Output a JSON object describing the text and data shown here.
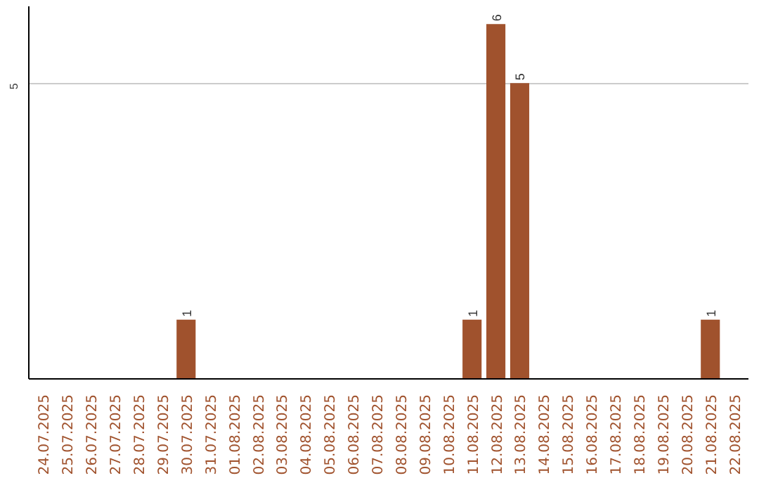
{
  "chart_data": {
    "type": "bar",
    "categories": [
      "24.07.2025",
      "25.07.2025",
      "26.07.2025",
      "27.07.2025",
      "28.07.2025",
      "29.07.2025",
      "30.07.2025",
      "31.07.2025",
      "01.08.2025",
      "02.08.2025",
      "03.08.2025",
      "04.08.2025",
      "05.08.2025",
      "06.08.2025",
      "07.08.2025",
      "08.08.2025",
      "09.08.2025",
      "10.08.2025",
      "11.08.2025",
      "12.08.2025",
      "13.08.2025",
      "14.08.2025",
      "15.08.2025",
      "16.08.2025",
      "17.08.2025",
      "18.08.2025",
      "19.08.2025",
      "20.08.2025",
      "21.08.2025",
      "22.08.2025"
    ],
    "values": [
      0,
      0,
      0,
      0,
      0,
      0,
      1,
      0,
      0,
      0,
      0,
      0,
      0,
      0,
      0,
      0,
      0,
      0,
      1,
      6,
      5,
      0,
      0,
      0,
      0,
      0,
      0,
      0,
      1,
      0
    ],
    "value_labels": [
      null,
      null,
      null,
      null,
      null,
      null,
      "1",
      null,
      null,
      null,
      null,
      null,
      null,
      null,
      null,
      null,
      null,
      null,
      "1",
      "6",
      "5",
      null,
      null,
      null,
      null,
      null,
      null,
      null,
      "1",
      null
    ],
    "color": "#a0522d",
    "ylim": [
      0,
      6.3
    ],
    "yticks": [
      5
    ],
    "grid": "y"
  }
}
